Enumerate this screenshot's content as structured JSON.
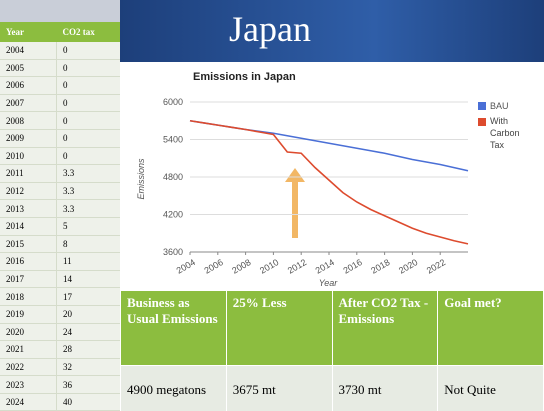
{
  "title": "Japan",
  "left_table": {
    "header": [
      "Year",
      "CO2 tax"
    ],
    "rows": [
      [
        "2004",
        "0"
      ],
      [
        "2005",
        "0"
      ],
      [
        "2006",
        "0"
      ],
      [
        "2007",
        "0"
      ],
      [
        "2008",
        "0"
      ],
      [
        "2009",
        "0"
      ],
      [
        "2010",
        "0"
      ],
      [
        "2011",
        "3.3"
      ],
      [
        "2012",
        "3.3"
      ],
      [
        "2013",
        "3.3"
      ],
      [
        "2014",
        "5"
      ],
      [
        "2015",
        "8"
      ],
      [
        "2016",
        "11"
      ],
      [
        "2017",
        "14"
      ],
      [
        "2018",
        "17"
      ],
      [
        "2019",
        "20"
      ],
      [
        "2020",
        "24"
      ],
      [
        "2021",
        "28"
      ],
      [
        "2022",
        "32"
      ],
      [
        "2023",
        "36"
      ],
      [
        "2024",
        "40"
      ]
    ]
  },
  "chart_data": {
    "type": "line",
    "title": "Emissions in Japan",
    "x_label": "Year",
    "y_label": "Emissions",
    "x": [
      2004,
      2005,
      2006,
      2007,
      2008,
      2009,
      2010,
      2011,
      2012,
      2013,
      2014,
      2015,
      2016,
      2017,
      2018,
      2019,
      2020,
      2021,
      2022,
      2023,
      2024
    ],
    "series": [
      {
        "name": "BAU",
        "color": "#4a6fd6",
        "values": [
          5700,
          5665,
          5630,
          5595,
          5560,
          5530,
          5500,
          5460,
          5420,
          5380,
          5340,
          5300,
          5260,
          5220,
          5180,
          5130,
          5080,
          5040,
          5000,
          4950,
          4900
        ]
      },
      {
        "name": "With Carbon Tax",
        "color": "#dd4b2e",
        "values": [
          5700,
          5665,
          5630,
          5595,
          5560,
          5520,
          5480,
          5200,
          5180,
          4950,
          4750,
          4550,
          4400,
          4280,
          4180,
          4080,
          3980,
          3900,
          3840,
          3780,
          3730
        ]
      }
    ],
    "xlim": [
      2004,
      2024
    ],
    "xticks": [
      2004,
      2006,
      2008,
      2010,
      2012,
      2014,
      2016,
      2018,
      2020,
      2022
    ],
    "ylim": [
      3600,
      6000
    ],
    "yticks": [
      3600,
      4200,
      4800,
      5400,
      6000
    ],
    "grid": true,
    "legend": "right"
  },
  "results": {
    "header": [
      "Business as Usual Emissions",
      "25% Less",
      "After CO2 Tax - Emissions",
      "Goal met?"
    ],
    "row": [
      "4900 megatons",
      "3675 mt",
      "3730 mt",
      "Not Quite"
    ]
  }
}
